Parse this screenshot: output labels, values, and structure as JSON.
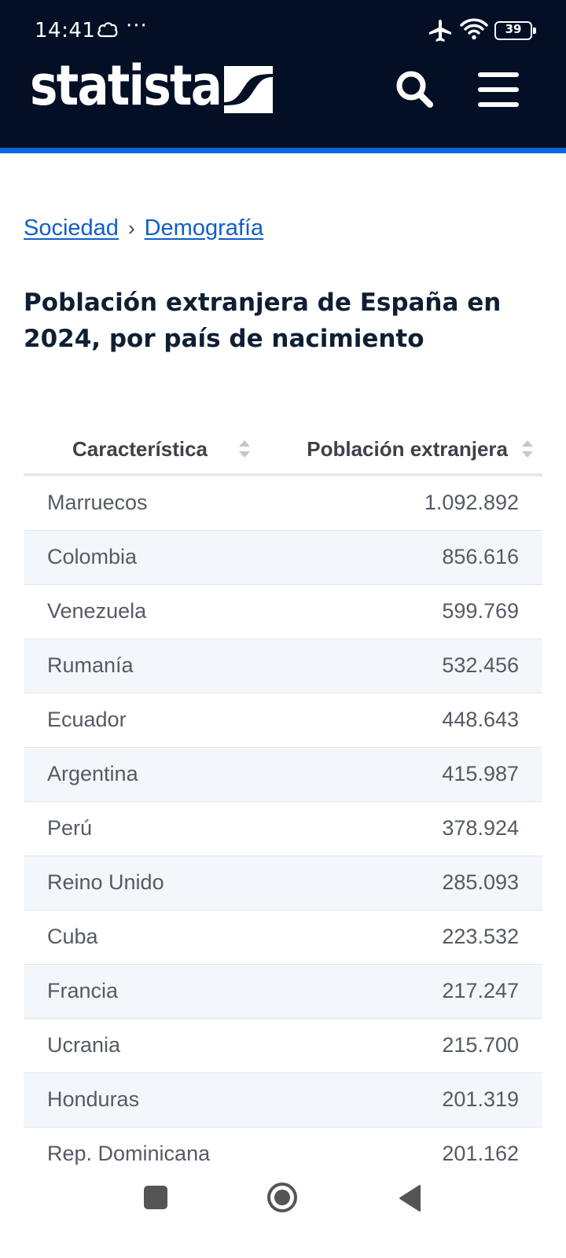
{
  "status_bar": {
    "time": "14:41",
    "dots": "···",
    "battery": "39",
    "battery_level": 0.39,
    "icons": [
      "cloud-icon",
      "airplane-icon",
      "wifi-icon",
      "battery-icon"
    ]
  },
  "header": {
    "logo": "statista",
    "search_icon": "search-icon",
    "menu_icon": "menu-icon",
    "accent_color": "#0666e4",
    "background_color": "#020f24"
  },
  "breadcrumb": {
    "items": [
      "Sociedad",
      "Demografía"
    ],
    "separator": "›"
  },
  "page_title": "Población extranjera de España en 2024, por país de nacimiento",
  "table": {
    "columns": [
      "Característica",
      "Población extranjera"
    ],
    "rows": [
      {
        "name": "Marruecos",
        "value": "1.092.892"
      },
      {
        "name": "Colombia",
        "value": "856.616"
      },
      {
        "name": "Venezuela",
        "value": "599.769"
      },
      {
        "name": "Rumanía",
        "value": "532.456"
      },
      {
        "name": "Ecuador",
        "value": "448.643"
      },
      {
        "name": "Argentina",
        "value": "415.987"
      },
      {
        "name": "Perú",
        "value": "378.924"
      },
      {
        "name": "Reino Unido",
        "value": "285.093"
      },
      {
        "name": "Cuba",
        "value": "223.532"
      },
      {
        "name": "Francia",
        "value": "217.247"
      },
      {
        "name": "Ucrania",
        "value": "215.700"
      },
      {
        "name": "Honduras",
        "value": "201.319"
      },
      {
        "name": "Rep. Dominicana",
        "value": "201.162"
      }
    ]
  },
  "nav_bar": {
    "icons": [
      "recents-square-icon",
      "home-circle-icon",
      "back-triangle-icon"
    ]
  }
}
